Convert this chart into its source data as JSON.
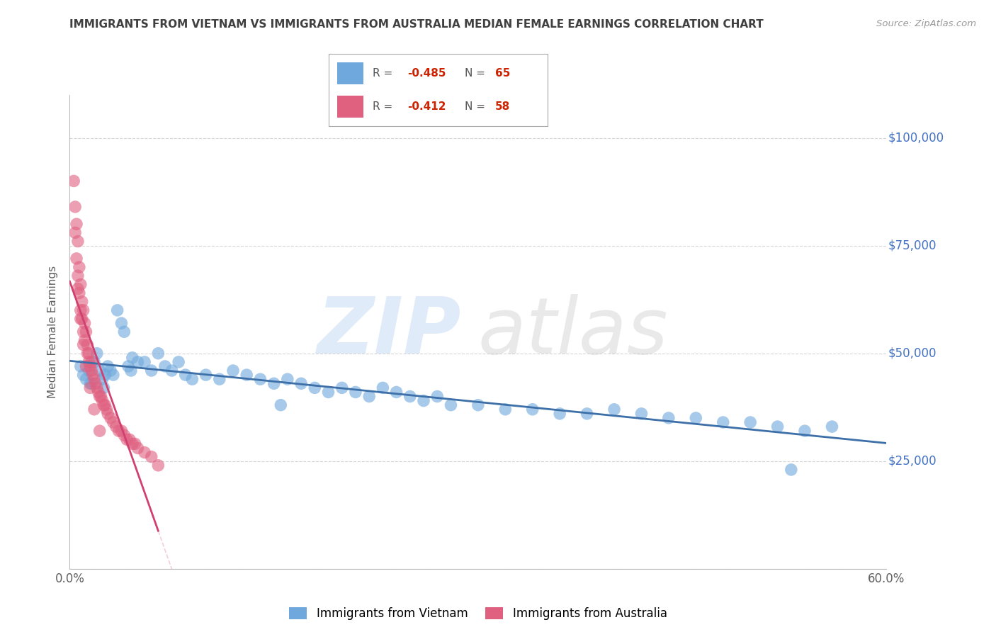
{
  "title": "IMMIGRANTS FROM VIETNAM VS IMMIGRANTS FROM AUSTRALIA MEDIAN FEMALE EARNINGS CORRELATION CHART",
  "source": "Source: ZipAtlas.com",
  "ylabel": "Median Female Earnings",
  "xlim": [
    0.0,
    0.6
  ],
  "ylim": [
    0,
    110000
  ],
  "yticks": [
    0,
    25000,
    50000,
    75000,
    100000
  ],
  "ytick_labels": [
    "",
    "$25,000",
    "$50,000",
    "$75,000",
    "$100,000"
  ],
  "xticks": [
    0.0,
    0.1,
    0.2,
    0.3,
    0.4,
    0.5,
    0.6
  ],
  "xtick_labels": [
    "0.0%",
    "",
    "",
    "",
    "",
    "",
    "60.0%"
  ],
  "vietnam_R": -0.485,
  "vietnam_N": 65,
  "australia_R": -0.412,
  "australia_N": 58,
  "vietnam_color": "#6fa8dc",
  "australia_color": "#e06080",
  "vietnam_line_color": "#3d6fa8",
  "australia_line_color": "#d04070",
  "grid_color": "#cccccc",
  "background_color": "#ffffff",
  "title_color": "#404040",
  "source_color": "#999999",
  "ylabel_color": "#606060",
  "ytick_color": "#4472c4",
  "xtick_color": "#606060",
  "legend_vietnam_label": "Immigrants from Vietnam",
  "legend_australia_label": "Immigrants from Australia",
  "vietnam_x": [
    0.008,
    0.01,
    0.012,
    0.014,
    0.016,
    0.018,
    0.02,
    0.022,
    0.024,
    0.026,
    0.028,
    0.03,
    0.032,
    0.035,
    0.038,
    0.04,
    0.043,
    0.046,
    0.05,
    0.055,
    0.06,
    0.065,
    0.07,
    0.075,
    0.08,
    0.085,
    0.09,
    0.1,
    0.11,
    0.12,
    0.13,
    0.14,
    0.15,
    0.16,
    0.17,
    0.18,
    0.19,
    0.2,
    0.21,
    0.22,
    0.23,
    0.24,
    0.25,
    0.26,
    0.27,
    0.28,
    0.3,
    0.32,
    0.34,
    0.36,
    0.38,
    0.4,
    0.42,
    0.44,
    0.46,
    0.48,
    0.5,
    0.52,
    0.54,
    0.56,
    0.015,
    0.025,
    0.045,
    0.155,
    0.53
  ],
  "vietnam_y": [
    47000,
    45000,
    44000,
    46000,
    43000,
    48000,
    50000,
    46000,
    44000,
    45000,
    47000,
    46000,
    45000,
    60000,
    57000,
    55000,
    47000,
    49000,
    48000,
    48000,
    46000,
    50000,
    47000,
    46000,
    48000,
    45000,
    44000,
    45000,
    44000,
    46000,
    45000,
    44000,
    43000,
    44000,
    43000,
    42000,
    41000,
    42000,
    41000,
    40000,
    42000,
    41000,
    40000,
    39000,
    40000,
    38000,
    38000,
    37000,
    37000,
    36000,
    36000,
    37000,
    36000,
    35000,
    35000,
    34000,
    34000,
    33000,
    32000,
    33000,
    43000,
    42000,
    46000,
    38000,
    23000
  ],
  "australia_x": [
    0.003,
    0.004,
    0.005,
    0.005,
    0.006,
    0.006,
    0.007,
    0.007,
    0.008,
    0.008,
    0.009,
    0.009,
    0.01,
    0.01,
    0.011,
    0.011,
    0.012,
    0.013,
    0.013,
    0.014,
    0.014,
    0.015,
    0.016,
    0.016,
    0.017,
    0.018,
    0.019,
    0.02,
    0.021,
    0.022,
    0.023,
    0.024,
    0.025,
    0.026,
    0.027,
    0.028,
    0.03,
    0.032,
    0.034,
    0.036,
    0.038,
    0.04,
    0.042,
    0.044,
    0.046,
    0.048,
    0.05,
    0.055,
    0.06,
    0.065,
    0.004,
    0.006,
    0.008,
    0.01,
    0.012,
    0.015,
    0.018,
    0.022
  ],
  "australia_y": [
    90000,
    84000,
    80000,
    72000,
    76000,
    68000,
    70000,
    64000,
    66000,
    60000,
    62000,
    58000,
    60000,
    55000,
    57000,
    53000,
    55000,
    50000,
    52000,
    48000,
    50000,
    47000,
    46000,
    48000,
    45000,
    44000,
    43000,
    42000,
    41000,
    40000,
    40000,
    39000,
    38000,
    38000,
    37000,
    36000,
    35000,
    34000,
    33000,
    32000,
    32000,
    31000,
    30000,
    30000,
    29000,
    29000,
    28000,
    27000,
    26000,
    24000,
    78000,
    65000,
    58000,
    52000,
    47000,
    42000,
    37000,
    32000
  ]
}
